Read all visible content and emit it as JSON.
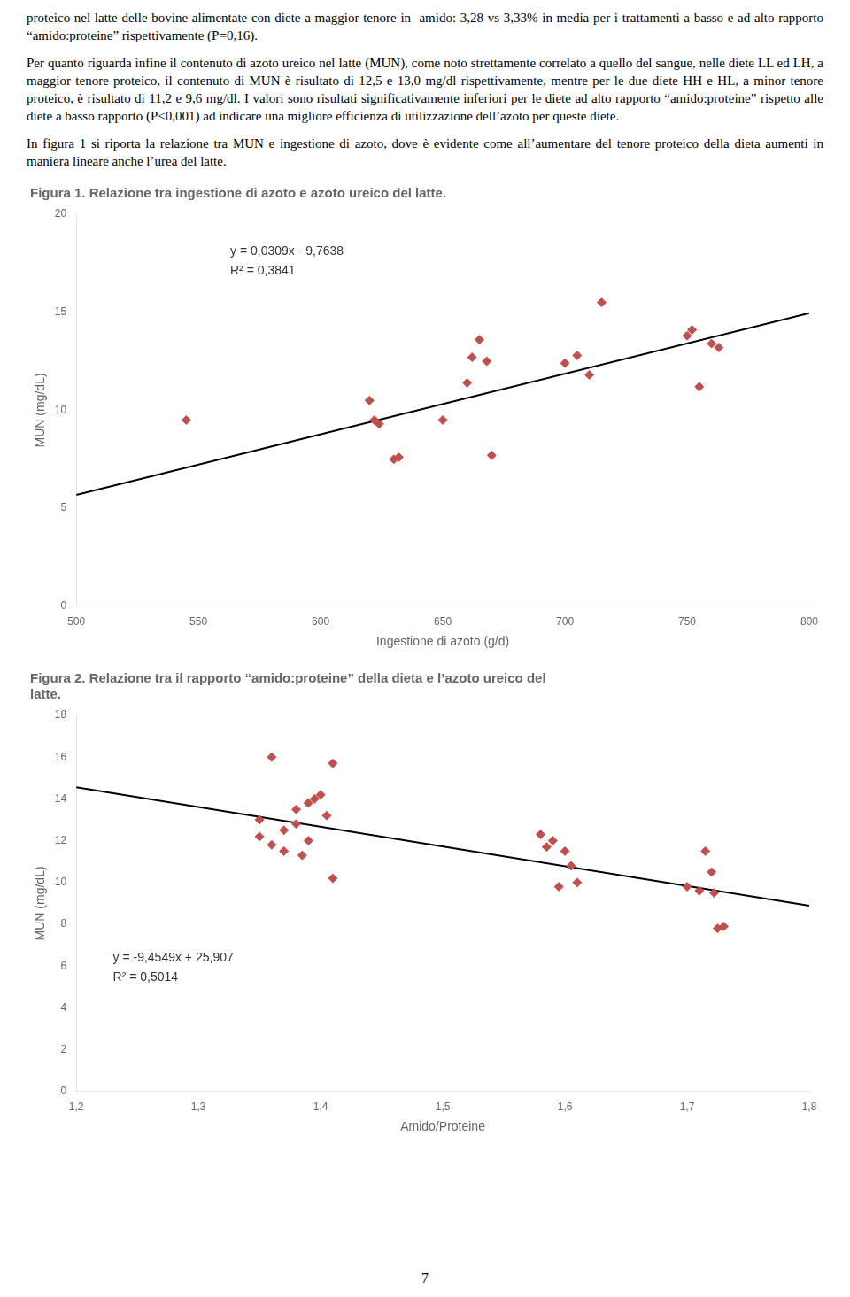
{
  "page_text": [
    "proteico nel latte delle bovine alimentate con diete a maggior tenore in  amido: 3,28 vs 3,33% in media per i trattamenti a basso e ad alto rapporto “amido:proteine” rispettivamente (P=0,16).",
    "Per quanto riguarda infine il contenuto di azoto ureico nel latte (MUN), come noto strettamente correlato a quello del sangue, nelle diete LL ed LH, a maggior tenore proteico, il contenuto di MUN è risultato di 12,5 e 13,0 mg/dl rispettivamente, mentre per le due diete HH e HL, a minor tenore proteico, è risultato di 11,2 e 9,6 mg/dl. I valori sono risultati significativamente inferiori per le diete ad alto rapporto “amido:proteine” rispetto alle diete a basso rapporto (P<0,001) ad indicare una migliore efficienza di utilizzazione dell’azoto per queste diete.",
    "In figura 1 si riporta la relazione tra MUN e ingestione di azoto, dove è evidente come all’aumentare del tenore proteico della dieta aumenti in maniera lineare anche l’urea del latte."
  ],
  "page_number": "7",
  "chart_data": [
    {
      "type": "scatter",
      "title": "Figura 1. Relazione tra ingestione di azoto e azoto ureico del latte.",
      "xlabel": "Ingestione di azoto (g/d)",
      "ylabel": "MUN (mg/dL)",
      "xlim": [
        500,
        800
      ],
      "ylim": [
        0,
        20
      ],
      "xticks": [
        500,
        550,
        600,
        650,
        700,
        750,
        800
      ],
      "yticks": [
        0,
        5,
        10,
        15,
        20
      ],
      "grid": false,
      "annotations": [
        "y = 0,0309x - 9,7638",
        "R² = 0,3841"
      ],
      "series": [
        {
          "type": "scatter",
          "color": "#c0504d",
          "marker": "diamond",
          "x": [
            545,
            620,
            622,
            624,
            630,
            632,
            650,
            660,
            662,
            665,
            668,
            670,
            700,
            705,
            710,
            715,
            750,
            752,
            755,
            760,
            763
          ],
          "values": [
            9.5,
            10.5,
            9.5,
            9.3,
            7.5,
            7.6,
            9.5,
            11.4,
            12.7,
            13.6,
            12.5,
            7.7,
            12.4,
            12.8,
            11.8,
            15.5,
            13.8,
            14.1,
            11.2,
            13.4,
            13.2
          ]
        },
        {
          "type": "line",
          "color": "#000000",
          "line_style": "solid",
          "x": [
            500,
            800
          ],
          "values": [
            5.6862,
            14.9562
          ]
        }
      ]
    },
    {
      "type": "scatter",
      "title": [
        "Figura 2. Relazione tra il rapporto “amido:proteine” della dieta e l’azoto ureico del",
        "latte."
      ],
      "xlabel": "Amido/Proteine",
      "ylabel": "MUN (mg/dL)",
      "xlim": [
        1.2,
        1.8
      ],
      "ylim": [
        0,
        18
      ],
      "xticks": [
        {
          "value": 1.2,
          "label": "1,2"
        },
        {
          "value": 1.3,
          "label": "1,3"
        },
        {
          "value": 1.4,
          "label": "1,4"
        },
        {
          "value": 1.5,
          "label": "1,5"
        },
        {
          "value": 1.6,
          "label": "1,6"
        },
        {
          "value": 1.7,
          "label": "1,7"
        },
        {
          "value": 1.8,
          "label": "1,8"
        }
      ],
      "yticks": [
        0,
        2,
        4,
        6,
        8,
        10,
        12,
        14,
        16,
        18
      ],
      "grid": false,
      "annotations": [
        "y = -9,4549x + 25,907",
        "R² = 0,5014"
      ],
      "series": [
        {
          "type": "scatter",
          "color": "#c0504d",
          "marker": "diamond",
          "x": [
            1.35,
            1.35,
            1.36,
            1.36,
            1.37,
            1.37,
            1.38,
            1.38,
            1.385,
            1.39,
            1.39,
            1.395,
            1.4,
            1.405,
            1.41,
            1.41,
            1.58,
            1.585,
            1.59,
            1.595,
            1.6,
            1.605,
            1.61,
            1.7,
            1.71,
            1.715,
            1.72,
            1.722,
            1.725,
            1.73
          ],
          "values": [
            13.0,
            12.2,
            16.0,
            11.8,
            12.5,
            11.5,
            12.8,
            13.5,
            11.3,
            12.0,
            13.8,
            14.0,
            14.2,
            13.2,
            15.7,
            10.2,
            12.3,
            11.7,
            12.0,
            9.8,
            11.5,
            10.8,
            10.0,
            9.8,
            9.6,
            11.5,
            10.5,
            9.5,
            7.8,
            7.9
          ]
        },
        {
          "type": "line",
          "color": "#000000",
          "line_style": "solid",
          "x": [
            1.2,
            1.8
          ],
          "values": [
            14.56112,
            8.88818
          ]
        }
      ]
    }
  ]
}
